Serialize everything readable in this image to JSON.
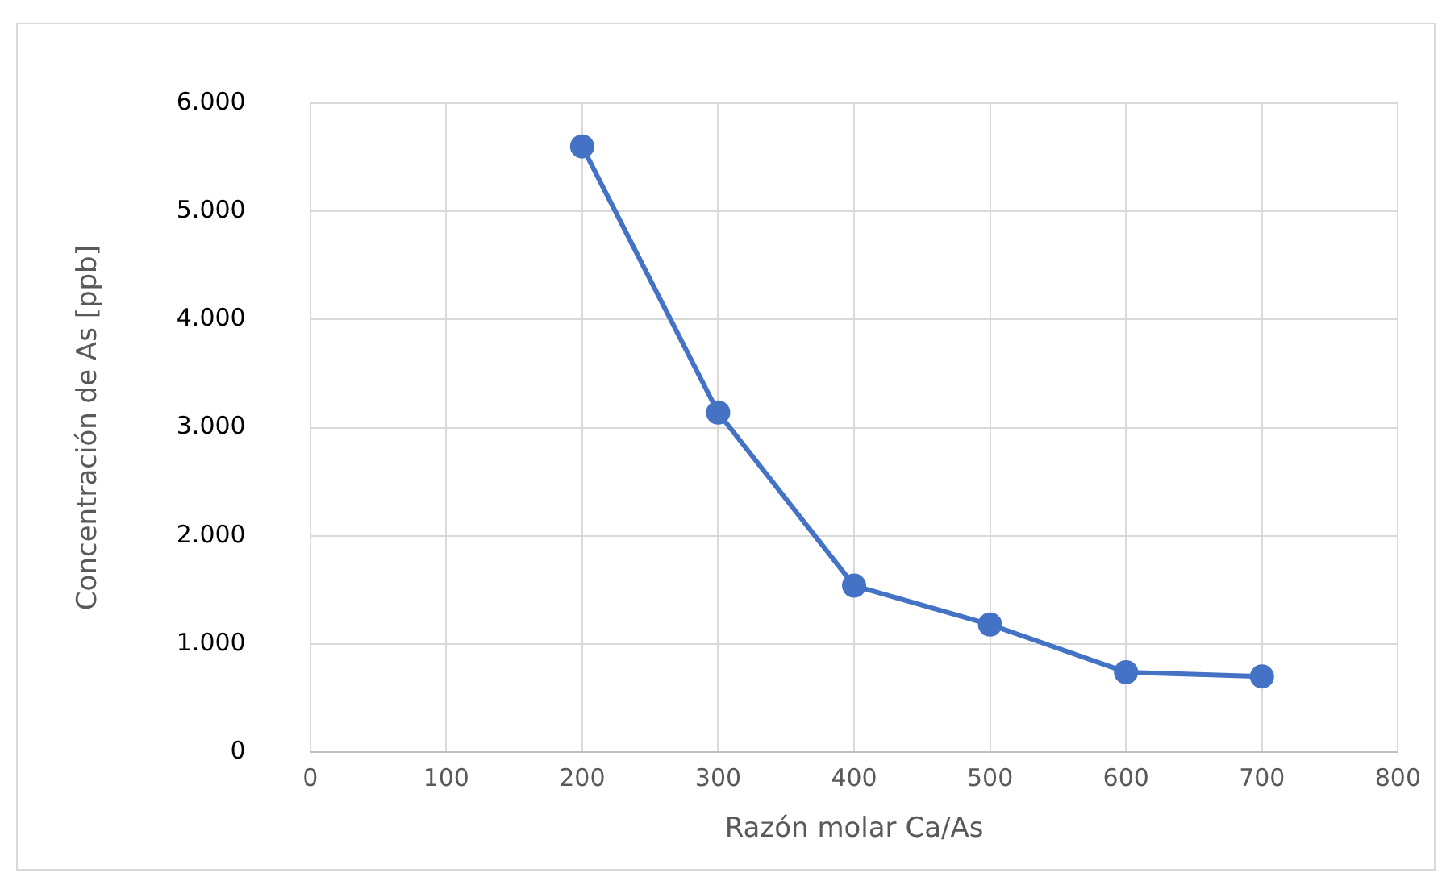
{
  "chart_data": {
    "type": "line",
    "xlabel": "Razón molar Ca/As",
    "ylabel": "Concentración de As [ppb]",
    "x": [
      200,
      300,
      400,
      500,
      600,
      700
    ],
    "series": [
      {
        "color": "#4472c4",
        "values": [
          5600,
          3140,
          1540,
          1180,
          740,
          700
        ]
      }
    ],
    "xlim": [
      0,
      800
    ],
    "xticks": [
      0,
      100,
      200,
      300,
      400,
      500,
      600,
      700,
      800
    ],
    "ylim": [
      0,
      6000
    ],
    "yticks": [
      0,
      {
        "value": 1000,
        "label": "1.000"
      },
      {
        "value": 2000,
        "label": "2.000"
      },
      {
        "value": 3000,
        "label": "3.000"
      },
      {
        "value": 4000,
        "label": "4.000"
      },
      {
        "value": 5000,
        "label": "5.000"
      },
      {
        "value": 6000,
        "label": "6.000"
      }
    ],
    "grid": true,
    "legend": false,
    "marker": "circle",
    "line_style": "solid"
  }
}
